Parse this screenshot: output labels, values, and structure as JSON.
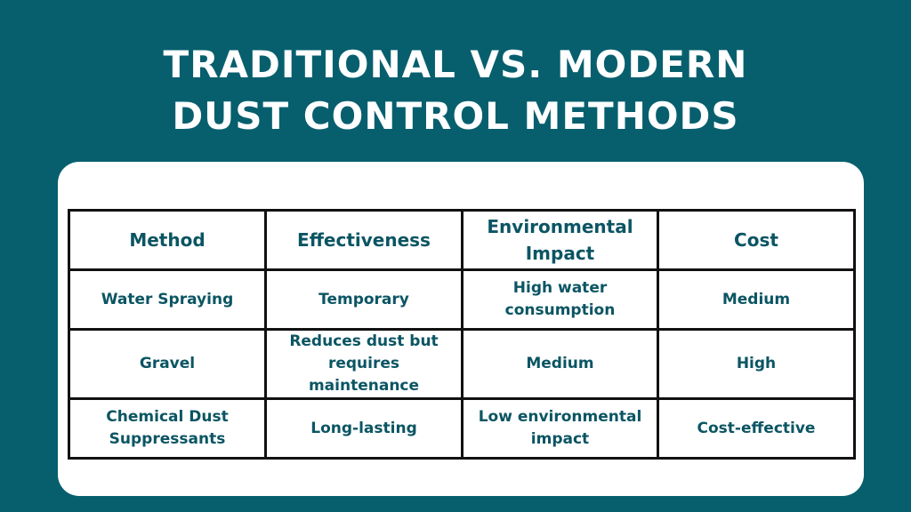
{
  "title": {
    "line1": "TRADITIONAL VS. MODERN",
    "line2": "DUST CONTROL METHODS"
  },
  "table": {
    "headers": [
      "Method",
      "Effectiveness",
      "Environmental Impact",
      "Cost"
    ],
    "rows": [
      [
        "Water Spraying",
        "Temporary",
        "High water consumption",
        "Medium"
      ],
      [
        "Gravel",
        "Reduces dust but requires maintenance",
        "Medium",
        "High"
      ],
      [
        "Chemical Dust Suppressants",
        "Long-lasting",
        "Low environmental impact",
        "Cost-effective"
      ]
    ]
  },
  "colors": {
    "background": "#075f6e",
    "text_accent": "#0b5563",
    "card": "#ffffff"
  }
}
